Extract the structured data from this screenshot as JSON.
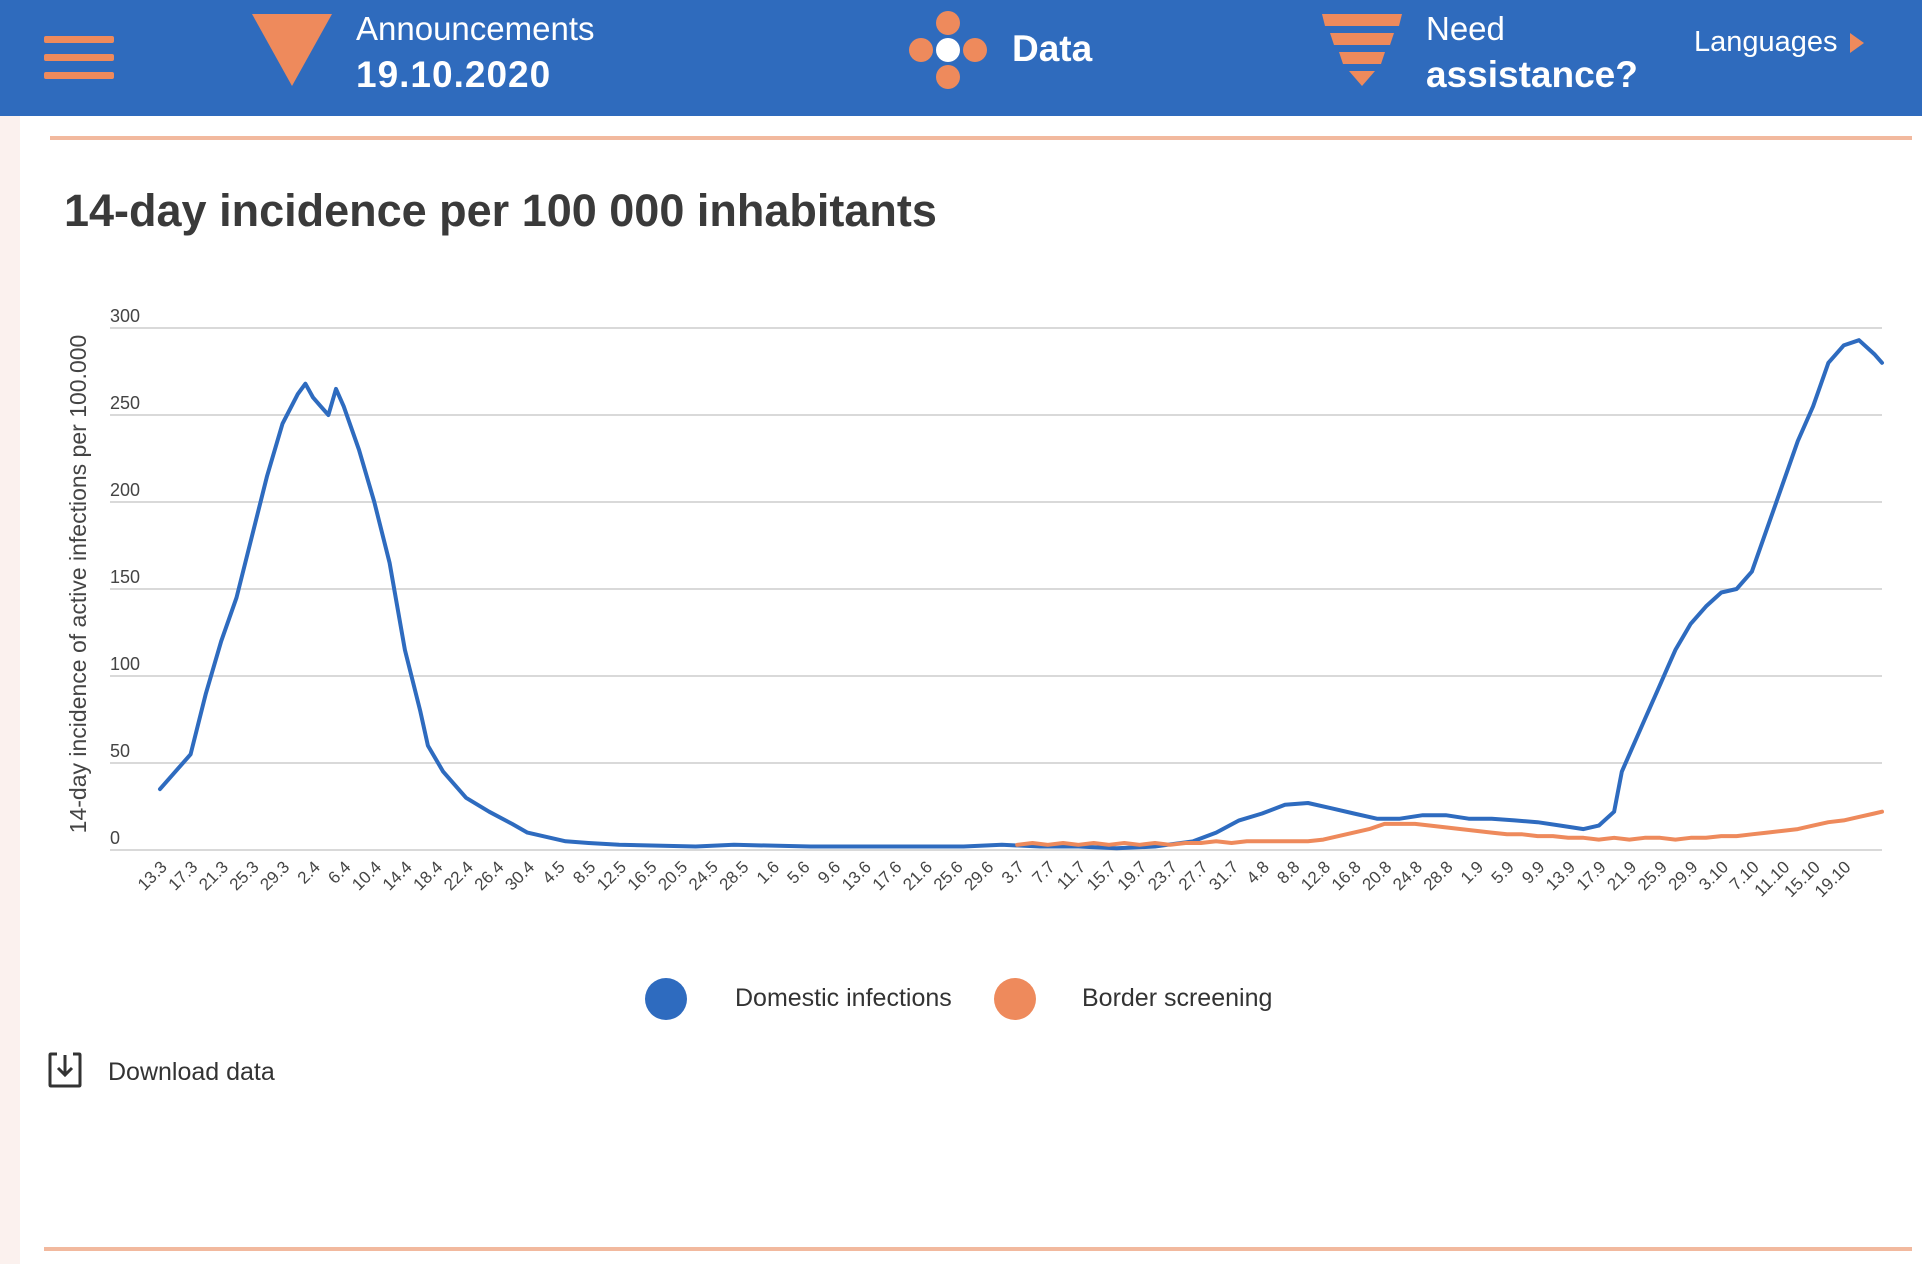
{
  "header": {
    "menu_icon": "hamburger-menu-icon",
    "announcements": {
      "label": "Announcements",
      "date": "19.10.2020",
      "icon": "triangle-down-icon"
    },
    "data": {
      "label": "Data",
      "icon": "data-dots-icon"
    },
    "assistance": {
      "line1": "Need",
      "line2": "assistance?",
      "icon": "funnel-icon"
    },
    "languages": {
      "label": "Languages",
      "icon": "triangle-right-icon"
    }
  },
  "colors": {
    "brand_blue": "#2f6bbd",
    "accent_orange": "#ee8a5c",
    "domestic": "#2e6bbf",
    "border": "#ee8a5c"
  },
  "chart_data": {
    "type": "line",
    "title": "14-day incidence per 100 000 inhabitants",
    "ylabel": "14-day incidence of active infections per 100.000",
    "xlabel": "",
    "ylim": [
      0,
      300
    ],
    "yticks": [
      0,
      50,
      100,
      150,
      200,
      250,
      300
    ],
    "x_tick_labels": [
      "13.3",
      "17.3",
      "21.3",
      "25.3",
      "29.3",
      "2.4",
      "6.4",
      "10.4",
      "14.4",
      "18.4",
      "22.4",
      "26.4",
      "30.4",
      "4.5",
      "8.5",
      "12.5",
      "16.5",
      "20.5",
      "24.5",
      "28.5",
      "1.6",
      "5.6",
      "9.6",
      "13.6",
      "17.6",
      "21.6",
      "25.6",
      "29.6",
      "3.7",
      "7.7",
      "11.7",
      "15.7",
      "19.7",
      "23.7",
      "27.7",
      "31.7",
      "4.8",
      "8.8",
      "12.8",
      "16.8",
      "20.8",
      "24.8",
      "28.8",
      "1.9",
      "5.9",
      "9.9",
      "13.9",
      "17.9",
      "21.9",
      "25.9",
      "29.9",
      "3.10",
      "7.10",
      "11.10",
      "15.10",
      "19.10"
    ],
    "series": [
      {
        "name": "Domestic infections",
        "color": "#2e6bbf",
        "points": [
          [
            0,
            35
          ],
          [
            2,
            45
          ],
          [
            4,
            55
          ],
          [
            6,
            90
          ],
          [
            8,
            120
          ],
          [
            10,
            145
          ],
          [
            12,
            180
          ],
          [
            14,
            215
          ],
          [
            16,
            245
          ],
          [
            18,
            262
          ],
          [
            19,
            268
          ],
          [
            20,
            260
          ],
          [
            21,
            255
          ],
          [
            22,
            250
          ],
          [
            23,
            265
          ],
          [
            24,
            255
          ],
          [
            26,
            230
          ],
          [
            28,
            200
          ],
          [
            30,
            165
          ],
          [
            32,
            115
          ],
          [
            34,
            80
          ],
          [
            35,
            60
          ],
          [
            37,
            45
          ],
          [
            40,
            30
          ],
          [
            43,
            22
          ],
          [
            46,
            15
          ],
          [
            48,
            10
          ],
          [
            50,
            8
          ],
          [
            53,
            5
          ],
          [
            56,
            4
          ],
          [
            60,
            3
          ],
          [
            70,
            2
          ],
          [
            75,
            3
          ],
          [
            85,
            2
          ],
          [
            95,
            2
          ],
          [
            100,
            2
          ],
          [
            105,
            2
          ],
          [
            110,
            3
          ],
          [
            115,
            2
          ],
          [
            120,
            2
          ],
          [
            125,
            1
          ],
          [
            130,
            2
          ],
          [
            135,
            5
          ],
          [
            138,
            10
          ],
          [
            141,
            17
          ],
          [
            144,
            21
          ],
          [
            147,
            26
          ],
          [
            150,
            27
          ],
          [
            153,
            24
          ],
          [
            156,
            21
          ],
          [
            159,
            18
          ],
          [
            162,
            18
          ],
          [
            165,
            20
          ],
          [
            168,
            20
          ],
          [
            171,
            18
          ],
          [
            174,
            18
          ],
          [
            177,
            17
          ],
          [
            180,
            16
          ],
          [
            183,
            14
          ],
          [
            186,
            12
          ],
          [
            188,
            14
          ],
          [
            190,
            22
          ],
          [
            191,
            45
          ],
          [
            192,
            55
          ],
          [
            194,
            75
          ],
          [
            195,
            85
          ],
          [
            196,
            95
          ],
          [
            197,
            105
          ],
          [
            198,
            115
          ],
          [
            200,
            130
          ],
          [
            202,
            140
          ],
          [
            204,
            148
          ],
          [
            206,
            150
          ],
          [
            208,
            160
          ],
          [
            210,
            185
          ],
          [
            212,
            210
          ],
          [
            214,
            235
          ],
          [
            216,
            255
          ],
          [
            218,
            280
          ],
          [
            220,
            290
          ],
          [
            222,
            293
          ],
          [
            224,
            285
          ],
          [
            225,
            280
          ]
        ]
      },
      {
        "name": "Border screening",
        "color": "#ee8a5c",
        "points": [
          [
            112,
            3
          ],
          [
            114,
            4
          ],
          [
            116,
            3
          ],
          [
            118,
            4
          ],
          [
            120,
            3
          ],
          [
            122,
            4
          ],
          [
            124,
            3
          ],
          [
            126,
            4
          ],
          [
            128,
            3
          ],
          [
            130,
            4
          ],
          [
            132,
            3
          ],
          [
            134,
            4
          ],
          [
            136,
            4
          ],
          [
            138,
            5
          ],
          [
            140,
            4
          ],
          [
            142,
            5
          ],
          [
            146,
            5
          ],
          [
            150,
            5
          ],
          [
            152,
            6
          ],
          [
            154,
            8
          ],
          [
            156,
            10
          ],
          [
            158,
            12
          ],
          [
            160,
            15
          ],
          [
            162,
            15
          ],
          [
            164,
            15
          ],
          [
            166,
            14
          ],
          [
            168,
            13
          ],
          [
            170,
            12
          ],
          [
            172,
            11
          ],
          [
            174,
            10
          ],
          [
            176,
            9
          ],
          [
            178,
            9
          ],
          [
            180,
            8
          ],
          [
            182,
            8
          ],
          [
            184,
            7
          ],
          [
            186,
            7
          ],
          [
            188,
            6
          ],
          [
            190,
            7
          ],
          [
            192,
            6
          ],
          [
            194,
            7
          ],
          [
            196,
            7
          ],
          [
            198,
            6
          ],
          [
            200,
            7
          ],
          [
            202,
            7
          ],
          [
            204,
            8
          ],
          [
            206,
            8
          ],
          [
            208,
            9
          ],
          [
            210,
            10
          ],
          [
            212,
            11
          ],
          [
            214,
            12
          ],
          [
            216,
            14
          ],
          [
            218,
            16
          ],
          [
            220,
            17
          ],
          [
            222,
            19
          ],
          [
            224,
            21
          ],
          [
            225,
            22
          ]
        ]
      }
    ],
    "legend": [
      "Domestic infections",
      "Border screening"
    ],
    "grid": true
  },
  "actions": {
    "download_label": "Download data",
    "download_icon": "download-icon"
  }
}
